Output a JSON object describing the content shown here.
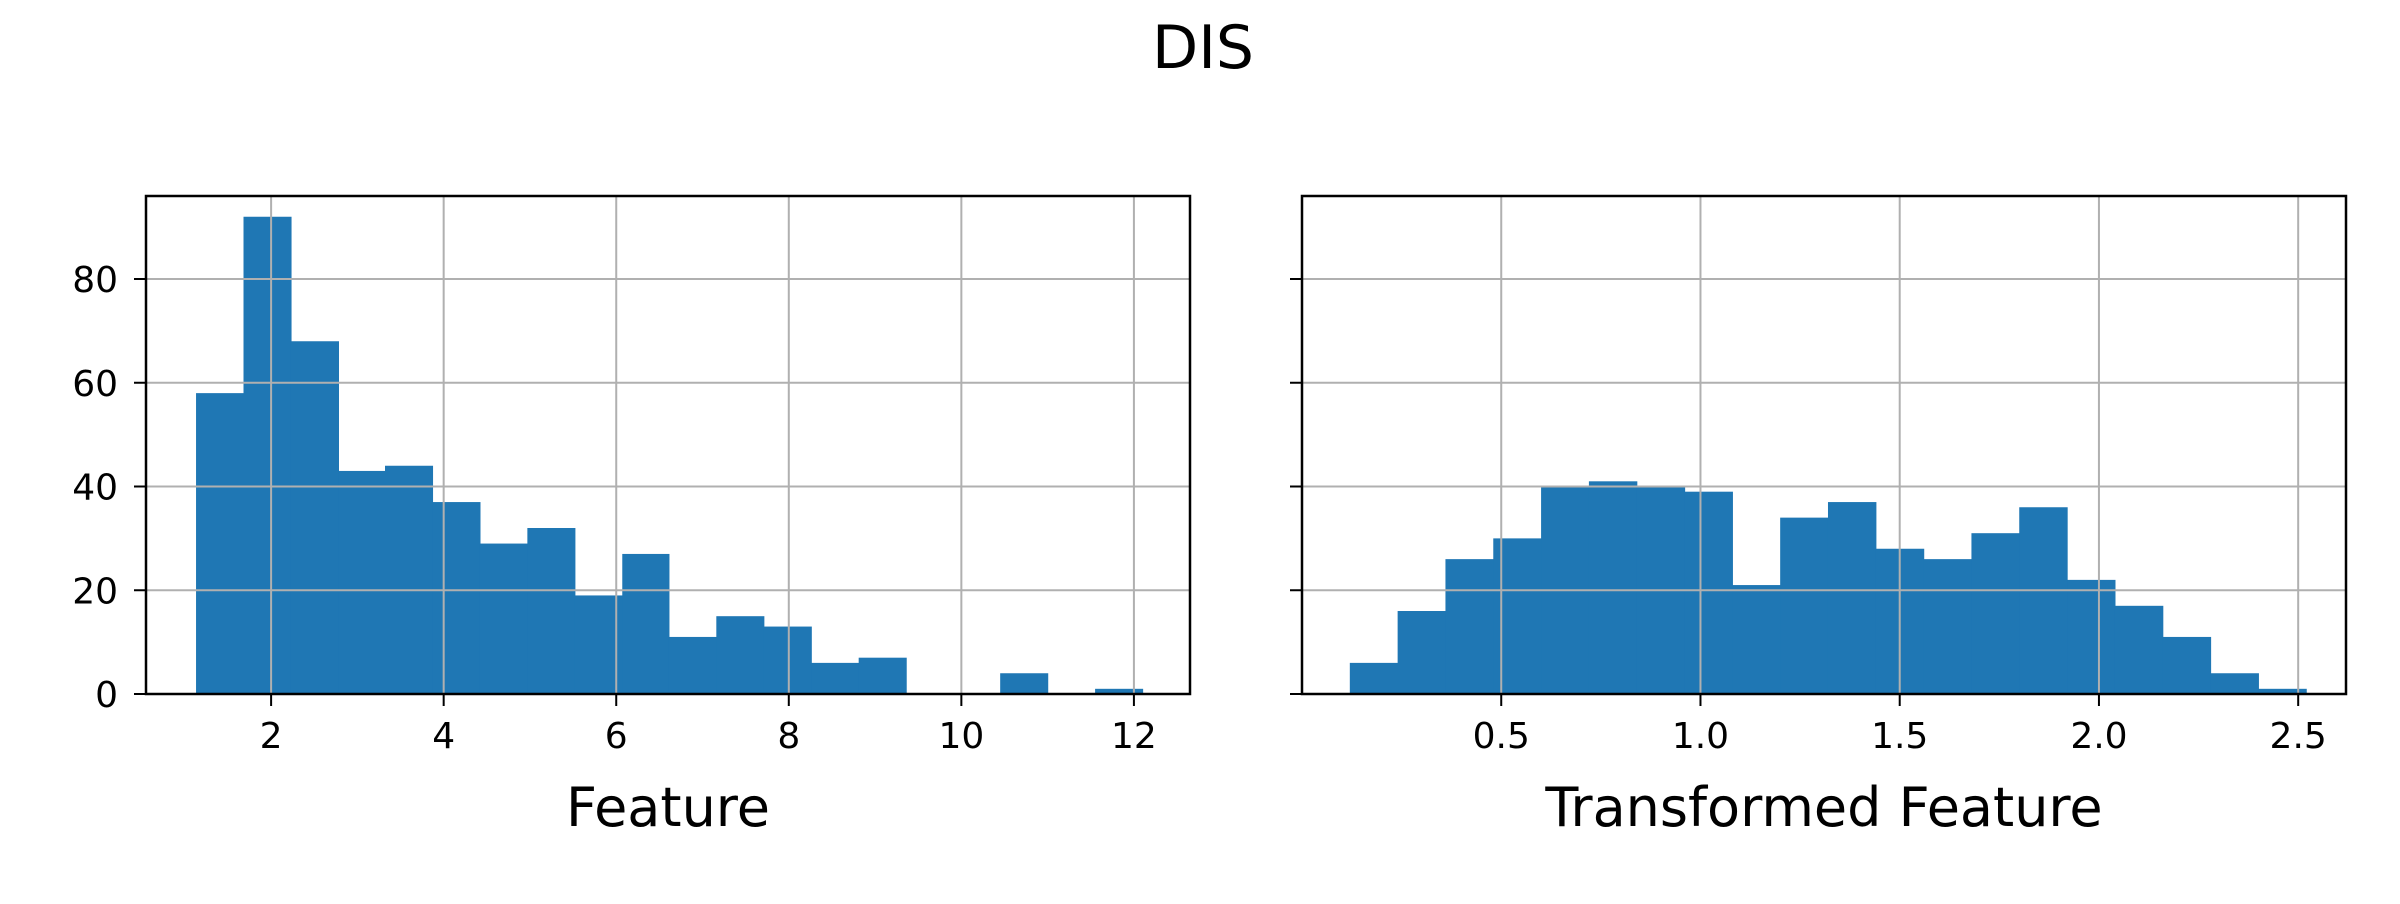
{
  "figure": {
    "title": "DIS",
    "bar_color": "#1f77b4",
    "grid_color": "#b0b0b0"
  },
  "chart_data": [
    {
      "type": "bar",
      "xlabel": "Feature",
      "ylabel": "",
      "grid": true,
      "xlim": [
        0.55,
        12.65
      ],
      "ylim": [
        0,
        96
      ],
      "xticks": [
        2,
        4,
        6,
        8,
        10,
        12
      ],
      "xtick_labels": [
        "2",
        "4",
        "6",
        "8",
        "10",
        "12"
      ],
      "yticks": [
        0,
        20,
        40,
        60,
        80
      ],
      "ytick_labels": [
        "0",
        "20",
        "40",
        "60",
        "80"
      ],
      "bin_edges": [
        1.13,
        1.68,
        2.23,
        2.78,
        3.32,
        3.87,
        4.42,
        4.97,
        5.52,
        6.07,
        6.61,
        7.16,
        7.71,
        8.26,
        8.81,
        9.36,
        9.91,
        10.45,
        11.0,
        11.55,
        12.1
      ],
      "counts": [
        58,
        92,
        68,
        43,
        44,
        37,
        29,
        32,
        19,
        27,
        11,
        15,
        13,
        6,
        7,
        0,
        0,
        4,
        0,
        1
      ]
    },
    {
      "type": "bar",
      "xlabel": "Transformed Feature",
      "ylabel": "",
      "grid": true,
      "xlim": [
        0.0,
        2.62
      ],
      "ylim": [
        0,
        96
      ],
      "xticks": [
        0.5,
        1.0,
        1.5,
        2.0,
        2.5
      ],
      "xtick_labels": [
        "0.5",
        "1.0",
        "1.5",
        "2.0",
        "2.5"
      ],
      "yticks": [
        0,
        20,
        40,
        60,
        80
      ],
      "ytick_labels": [
        "",
        "",
        "",
        "",
        ""
      ],
      "bin_edges": [
        0.12,
        0.24,
        0.36,
        0.48,
        0.6,
        0.72,
        0.84,
        0.96,
        1.08,
        1.2,
        1.32,
        1.44,
        1.56,
        1.68,
        1.8,
        1.92,
        2.04,
        2.16,
        2.28,
        2.4,
        2.52
      ],
      "counts": [
        6,
        16,
        26,
        30,
        40,
        41,
        40,
        39,
        21,
        34,
        37,
        28,
        26,
        31,
        36,
        22,
        17,
        11,
        4,
        1
      ]
    }
  ]
}
